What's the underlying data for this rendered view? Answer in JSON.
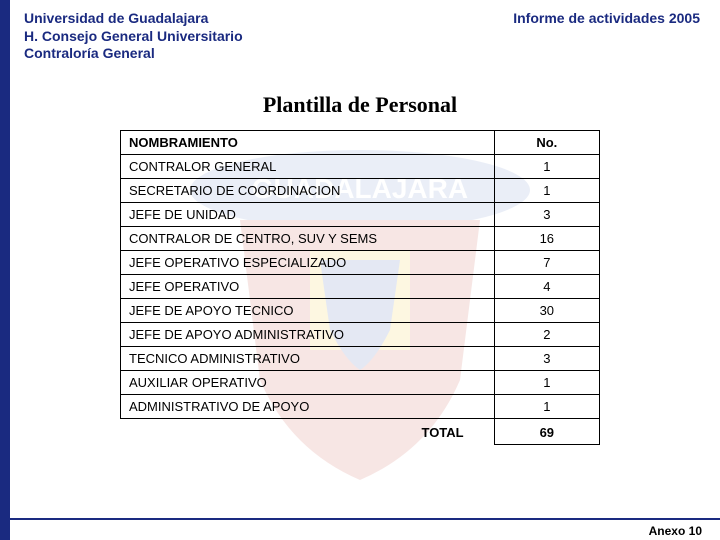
{
  "header": {
    "org1": "Universidad de Guadalajara",
    "org2": "H. Consejo General Universitario",
    "org3": "Contraloría General",
    "report": "Informe de actividades 2005"
  },
  "title": "Plantilla de Personal",
  "table": {
    "header_name": "NOMBRAMIENTO",
    "header_count": "No.",
    "rows": [
      {
        "name": "CONTRALOR GENERAL",
        "count": "1"
      },
      {
        "name": "SECRETARIO DE COORDINACION",
        "count": "1"
      },
      {
        "name": "JEFE DE UNIDAD",
        "count": "3"
      },
      {
        "name": "CONTRALOR DE CENTRO, SUV Y SEMS",
        "count": "16"
      },
      {
        "name": "JEFE OPERATIVO ESPECIALIZADO",
        "count": "7"
      },
      {
        "name": "JEFE OPERATIVO",
        "count": "4"
      },
      {
        "name": "JEFE DE APOYO TECNICO",
        "count": "30"
      },
      {
        "name": "JEFE DE APOYO ADMINISTRATIVO",
        "count": "2"
      },
      {
        "name": "TECNICO ADMINISTRATIVO",
        "count": "3"
      },
      {
        "name": "AUXILIAR OPERATIVO",
        "count": "1"
      },
      {
        "name": "ADMINISTRATIVO DE APOYO",
        "count": "1"
      }
    ],
    "total_label": "TOTAL",
    "total_value": "69"
  },
  "footer": {
    "anexo": "Anexo 10"
  },
  "colors": {
    "brand_blue": "#1a2a80",
    "text_black": "#000000",
    "background": "#ffffff"
  }
}
